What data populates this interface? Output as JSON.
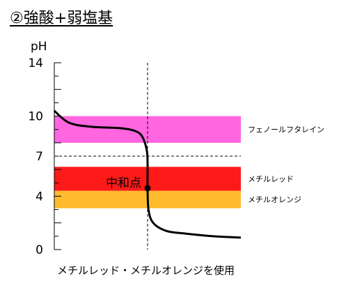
{
  "title": "②強酸+弱塩基",
  "caption": "メチルレッド・メチルオレンジを使用",
  "chart_data": {
    "type": "line",
    "ylabel": "pH",
    "xlabel": "",
    "ylim": [
      0,
      14
    ],
    "yticks_labeled": [
      "14",
      "10",
      "7",
      "4",
      "0"
    ],
    "equivalence_point": {
      "label": "中和点",
      "pH": 4.6
    },
    "bands": [
      {
        "name": "フェノールフタレイン",
        "range": [
          8.0,
          10.0
        ],
        "color": "#ff66e0"
      },
      {
        "name": "メチルレッド",
        "range": [
          4.4,
          6.2
        ],
        "color": "#ff1a1a"
      },
      {
        "name": "メチルオレンジ",
        "range": [
          3.1,
          4.4
        ],
        "color": "#ffbb2e"
      }
    ],
    "reference_lines": {
      "horizontal_pH": 7,
      "vertical_at_equivalence": true
    },
    "series": [
      {
        "curve": [
          [
            0,
            10.4
          ],
          [
            0.08,
            9.5
          ],
          [
            0.2,
            9.2
          ],
          [
            0.35,
            9.1
          ],
          [
            0.43,
            8.9
          ],
          [
            0.47,
            8.5
          ],
          [
            0.495,
            7.5
          ],
          [
            0.5,
            6.5
          ],
          [
            0.5,
            4.6
          ],
          [
            0.505,
            3.0
          ],
          [
            0.53,
            2.0
          ],
          [
            0.6,
            1.4
          ],
          [
            0.7,
            1.2
          ],
          [
            0.85,
            1.0
          ],
          [
            1.0,
            0.9
          ]
        ]
      }
    ],
    "line_color": "#000000"
  }
}
